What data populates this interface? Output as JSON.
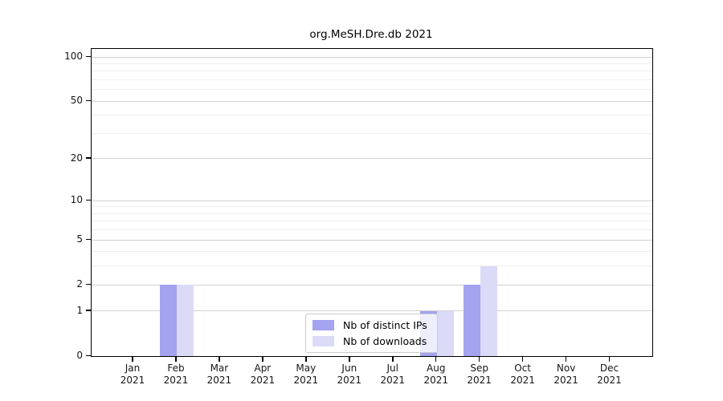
{
  "title": "org.MeSH.Dre.db 2021",
  "chart_data": {
    "type": "bar",
    "title": "org.MeSH.Dre.db 2021",
    "categories": [
      "Jan 2021",
      "Feb 2021",
      "Mar 2021",
      "Apr 2021",
      "May 2021",
      "Jun 2021",
      "Jul 2021",
      "Aug 2021",
      "Sep 2021",
      "Oct 2021",
      "Nov 2021",
      "Dec 2021"
    ],
    "series": [
      {
        "name": "Nb of distinct IPs",
        "color": "#a3a3f0",
        "values": [
          0,
          2,
          0,
          0,
          0,
          0,
          0,
          1,
          2,
          0,
          0,
          0
        ]
      },
      {
        "name": "Nb of downloads",
        "color": "#dbdbf8",
        "values": [
          0,
          2,
          0,
          0,
          0,
          0,
          0,
          1,
          3,
          0,
          0,
          0
        ]
      }
    ],
    "xlabel": "",
    "ylabel": "",
    "yscale": "log1p",
    "ylim": [
      0,
      115
    ],
    "yticks": [
      0,
      1,
      2,
      5,
      10,
      20,
      50,
      100
    ],
    "yticks_minor": [
      3,
      4,
      6,
      7,
      8,
      9,
      30,
      40,
      60,
      70,
      80,
      90
    ],
    "grid": "horizontal",
    "legend_position": "inside-bottom-center"
  },
  "legend": {
    "swatch_colors": [
      "#a3a3f0",
      "#dbdbf8"
    ],
    "border_color": "#cccccc"
  }
}
